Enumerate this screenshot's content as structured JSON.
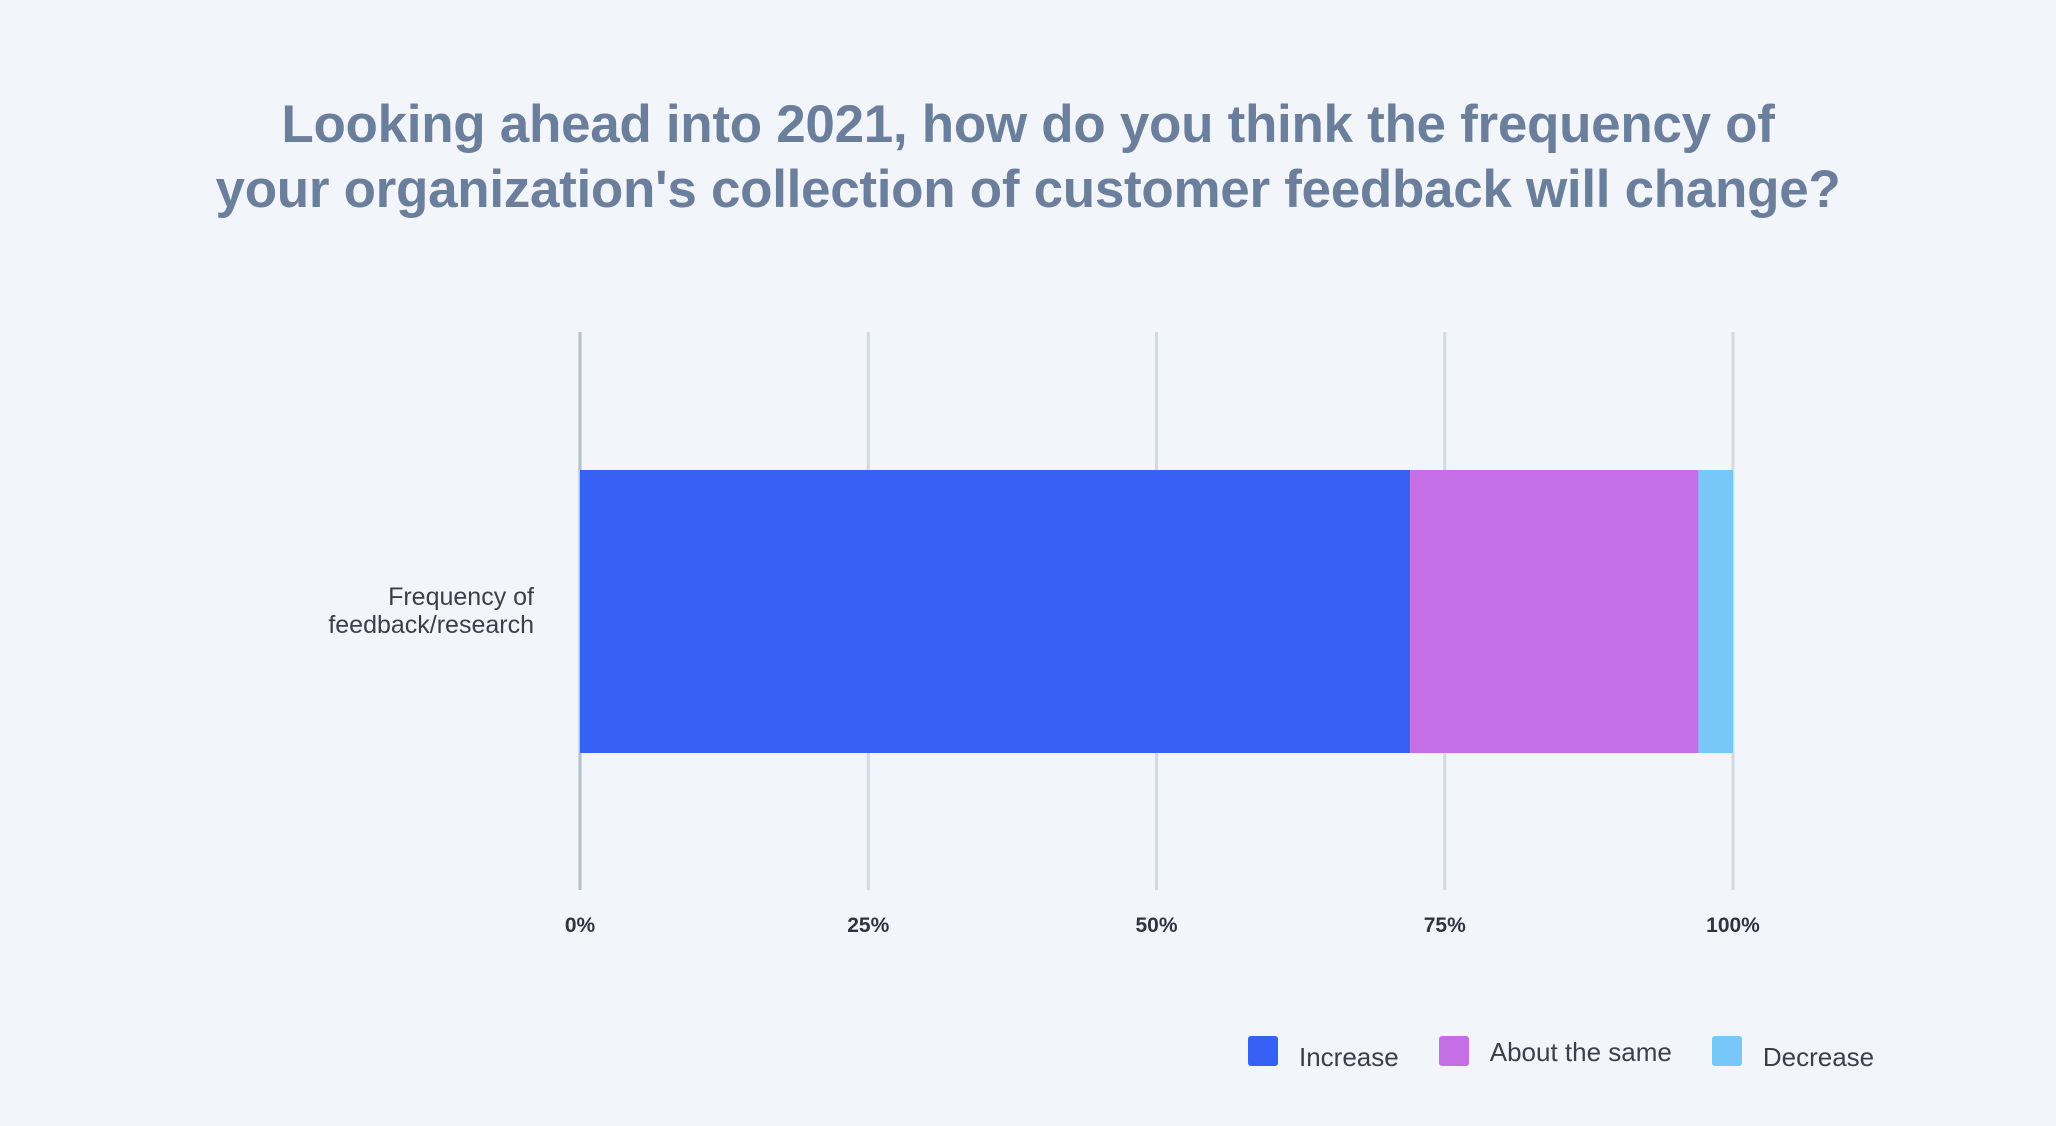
{
  "chart_data": {
    "type": "bar",
    "orientation": "horizontal",
    "stacked": true,
    "title": "Looking ahead into 2021, how do you think the frequency of your organization's collection of customer feedback will change?",
    "title_lines": [
      "Looking ahead into 2021, how do you think the frequency of",
      "your organization's collection of customer feedback will change?"
    ],
    "categories": [
      "Frequency of feedback/research"
    ],
    "category_label_lines": [
      "Frequency of",
      "feedback/research"
    ],
    "series": [
      {
        "name": "Increase",
        "values": [
          72
        ],
        "color": "#3761f4"
      },
      {
        "name": "About the same",
        "values": [
          25
        ],
        "color": "#c46fe6"
      },
      {
        "name": "Decrease",
        "values": [
          3
        ],
        "color": "#77c8f9"
      }
    ],
    "xlabel": "",
    "ylabel": "",
    "xlim": [
      0,
      100
    ],
    "x_ticks": [
      0,
      25,
      50,
      75,
      100
    ],
    "x_tick_labels": [
      "0%",
      "25%",
      "50%",
      "75%",
      "100%"
    ],
    "grid": true,
    "legend_position": "bottom-right"
  }
}
